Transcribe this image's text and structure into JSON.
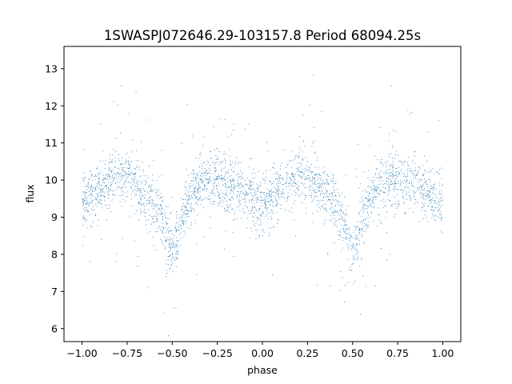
{
  "chart_data": {
    "type": "scatter",
    "title": "1SWASPJ072646.29-103157.8 Period 68094.25s",
    "xlabel": "phase",
    "ylabel": "flux",
    "xlim": [
      -1.1,
      1.1
    ],
    "ylim": [
      5.65,
      13.6
    ],
    "xticks": [
      -1.0,
      -0.75,
      -0.5,
      -0.25,
      0.0,
      0.25,
      0.5,
      0.75,
      1.0
    ],
    "xtick_labels": [
      "−1.00",
      "−0.75",
      "−0.50",
      "−0.25",
      "0.00",
      "0.25",
      "0.50",
      "0.75",
      "1.00"
    ],
    "yticks": [
      6,
      7,
      8,
      9,
      10,
      11,
      12,
      13
    ],
    "ytick_labels": [
      "6",
      "7",
      "8",
      "9",
      "10",
      "11",
      "12",
      "13"
    ],
    "grid": false,
    "marker_color": "#1f77b4",
    "series": [
      {
        "name": "",
        "light_curve_profile": {
          "phase": [
            -1.0,
            -0.95,
            -0.9,
            -0.85,
            -0.8,
            -0.75,
            -0.7,
            -0.65,
            -0.6,
            -0.55,
            -0.52,
            -0.5,
            -0.48,
            -0.45,
            -0.4,
            -0.35,
            -0.3,
            -0.25,
            -0.2,
            -0.15,
            -0.1,
            -0.05,
            0.0,
            0.05,
            0.1,
            0.15,
            0.2,
            0.25,
            0.3,
            0.35,
            0.4,
            0.45,
            0.48,
            0.5,
            0.52,
            0.55,
            0.6,
            0.65,
            0.7,
            0.75,
            0.8,
            0.85,
            0.9,
            0.95,
            1.0
          ],
          "median_flux": [
            9.4,
            9.6,
            9.8,
            9.9,
            10.1,
            10.1,
            9.9,
            9.6,
            9.3,
            8.9,
            8.4,
            7.9,
            8.3,
            8.9,
            9.5,
            9.8,
            10.0,
            10.0,
            9.9,
            9.8,
            9.7,
            9.5,
            9.4,
            9.5,
            9.7,
            9.9,
            10.1,
            10.1,
            9.9,
            9.6,
            9.3,
            8.9,
            8.4,
            7.9,
            8.3,
            8.9,
            9.5,
            9.8,
            10.0,
            10.0,
            9.9,
            9.8,
            9.7,
            9.5,
            9.4
          ]
        }
      }
    ]
  }
}
